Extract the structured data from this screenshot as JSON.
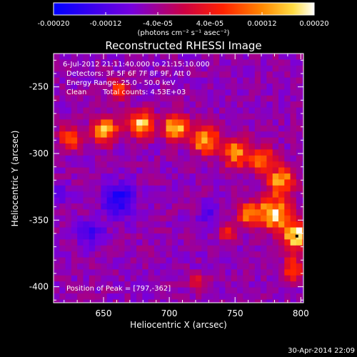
{
  "chart_data": {
    "type": "heatmap",
    "title": "Reconstructed RHESSI Image",
    "xlabel": "Heliocentric X (arcsec)",
    "ylabel": "Heliocentric Y (arcsec)",
    "xlim": [
      612,
      802
    ],
    "ylim": [
      -412,
      -225
    ],
    "x_ticks": [
      650,
      700,
      750,
      800
    ],
    "y_ticks": [
      -250,
      -300,
      -350,
      -400
    ],
    "colorbar": {
      "range": [
        -0.0002,
        0.0002
      ],
      "ticks": [
        -0.0002,
        -0.00012,
        -4e-05,
        4e-05,
        0.00012,
        0.0002
      ],
      "tick_labels": [
        "-0.00020",
        "-0.00012",
        "-4.0e-05",
        "4.0e-05",
        "0.00012",
        "0.00020"
      ],
      "units": "(photons cm⁻² s⁻¹ asec⁻²)",
      "colormap": [
        "#0000ff",
        "#9900cc",
        "#ff0000",
        "#ff8800",
        "#ffffff"
      ]
    },
    "annotations": {
      "time_range": "6-Jul-2012 21:11:40.000 to 21:15:10.000",
      "detectors": "Detectors: 3F 5F 6F 7F 8F 9F, Att 0",
      "energy": "Energy Range: 25.0 - 50.0 keV",
      "method": "Clean",
      "counts": "Total counts: 4.53E+03",
      "peak": "Position of Peak = [797,-362]"
    },
    "peak": [
      797,
      -362
    ],
    "emission_regions": [
      {
        "center": [
          625,
          -288
        ],
        "radius": 8,
        "level": 0.55
      },
      {
        "center": [
          651,
          -283
        ],
        "radius": 9,
        "level": 0.75
      },
      {
        "center": [
          679,
          -278
        ],
        "radius": 9,
        "level": 0.8
      },
      {
        "center": [
          705,
          -280
        ],
        "radius": 9,
        "level": 0.8
      },
      {
        "center": [
          727,
          -290
        ],
        "radius": 10,
        "level": 0.75
      },
      {
        "center": [
          751,
          -300
        ],
        "radius": 10,
        "level": 0.7
      },
      {
        "center": [
          771,
          -305
        ],
        "radius": 9,
        "level": 0.55
      },
      {
        "center": [
          785,
          -320
        ],
        "radius": 10,
        "level": 0.65
      },
      {
        "center": [
          780,
          -345
        ],
        "radius": 12,
        "level": 0.85
      },
      {
        "center": [
          760,
          -345
        ],
        "radius": 8,
        "level": 0.6
      },
      {
        "center": [
          797,
          -362
        ],
        "radius": 9,
        "level": 0.95
      },
      {
        "center": [
          795,
          -387
        ],
        "radius": 8,
        "level": 0.55
      },
      {
        "center": [
          662,
          -252
        ],
        "radius": 7,
        "level": 0.5
      },
      {
        "center": [
          745,
          -360
        ],
        "radius": 6,
        "level": 0.45
      },
      {
        "center": [
          722,
          -397
        ],
        "radius": 6,
        "level": 0.4
      }
    ],
    "negative_regions": [
      {
        "center": [
          662,
          -335
        ],
        "radius": 12,
        "level": 0.9
      },
      {
        "center": [
          640,
          -360
        ],
        "radius": 10,
        "level": 0.6
      },
      {
        "center": [
          618,
          -330
        ],
        "radius": 7,
        "level": 0.4
      },
      {
        "center": [
          730,
          -345
        ],
        "radius": 8,
        "level": 0.4
      }
    ]
  },
  "footer": {
    "timestamp": "30-Apr-2014 22:09"
  }
}
